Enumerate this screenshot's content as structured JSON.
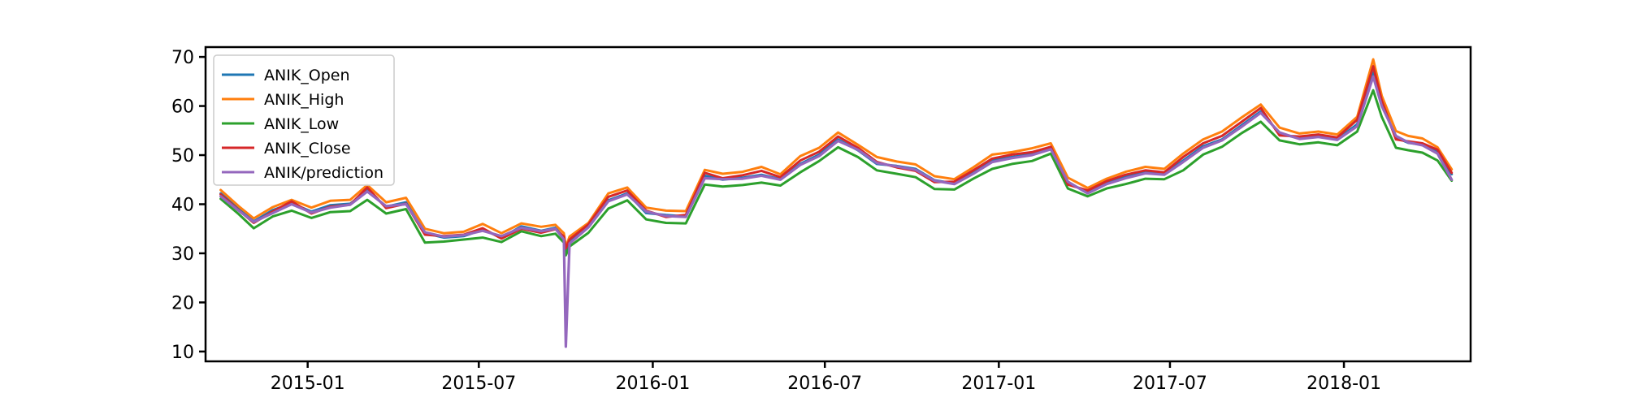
{
  "chart_data": {
    "type": "line",
    "title": "",
    "xlabel": "",
    "ylabel": "",
    "ylim": [
      8,
      72
    ],
    "xlim": [
      "2014-09-15",
      "2018-05-15"
    ],
    "grid": false,
    "legend_position": "top-left",
    "y_ticks": [
      10,
      20,
      30,
      40,
      50,
      60,
      70
    ],
    "x_ticks": [
      {
        "date": "2015-01-01",
        "label": "2015-01"
      },
      {
        "date": "2015-07-01",
        "label": "2015-07"
      },
      {
        "date": "2016-01-01",
        "label": "2016-01"
      },
      {
        "date": "2016-07-01",
        "label": "2016-07"
      },
      {
        "date": "2017-01-01",
        "label": "2017-01"
      },
      {
        "date": "2017-07-01",
        "label": "2017-07"
      },
      {
        "date": "2018-01-01",
        "label": "2018-01"
      }
    ],
    "dates": [
      "2014-10-01",
      "2014-10-20",
      "2014-11-05",
      "2014-11-25",
      "2014-12-15",
      "2015-01-05",
      "2015-01-25",
      "2015-02-15",
      "2015-03-05",
      "2015-03-25",
      "2015-04-15",
      "2015-05-05",
      "2015-05-25",
      "2015-06-15",
      "2015-07-05",
      "2015-07-25",
      "2015-08-15",
      "2015-09-05",
      "2015-09-20",
      "2015-09-29",
      "2015-10-01",
      "2015-10-05",
      "2015-10-25",
      "2015-11-15",
      "2015-12-05",
      "2015-12-25",
      "2016-01-15",
      "2016-02-05",
      "2016-02-25",
      "2016-03-15",
      "2016-04-05",
      "2016-04-25",
      "2016-05-15",
      "2016-06-05",
      "2016-06-25",
      "2016-07-15",
      "2016-08-05",
      "2016-08-25",
      "2016-09-15",
      "2016-10-05",
      "2016-10-25",
      "2016-11-15",
      "2016-12-05",
      "2016-12-25",
      "2017-01-15",
      "2017-02-05",
      "2017-02-25",
      "2017-03-15",
      "2017-04-05",
      "2017-04-25",
      "2017-05-15",
      "2017-06-05",
      "2017-06-25",
      "2017-07-15",
      "2017-08-05",
      "2017-08-25",
      "2017-09-15",
      "2017-10-05",
      "2017-10-25",
      "2017-11-15",
      "2017-12-05",
      "2017-12-25",
      "2018-01-15",
      "2018-02-01",
      "2018-02-10",
      "2018-02-25",
      "2018-03-10",
      "2018-03-25",
      "2018-04-10",
      "2018-04-25"
    ],
    "series": [
      {
        "name": "ANIK_Open",
        "color": "#1f77b4",
        "values": [
          42.2,
          39.1,
          36.5,
          38.8,
          40.2,
          38.5,
          39.8,
          40.1,
          42.8,
          39.5,
          40.4,
          34.1,
          33.2,
          33.5,
          34.8,
          33.2,
          35.5,
          34.6,
          35.2,
          33.1,
          30.5,
          32.5,
          35.5,
          40.8,
          42.2,
          38.2,
          37.8,
          37.5,
          45.8,
          45.0,
          45.4,
          46.0,
          45.1,
          48.2,
          50.1,
          53.2,
          51.0,
          48.2,
          47.8,
          47.2,
          44.9,
          44.2,
          46.4,
          48.9,
          49.6,
          50.2,
          51.4,
          44.3,
          42.5,
          44.3,
          45.6,
          46.6,
          46.2,
          48.9,
          51.8,
          53.2,
          56.1,
          58.9,
          54.4,
          53.4,
          53.9,
          53.2,
          56.3,
          66.8,
          60.3,
          53.6,
          52.5,
          52.1,
          50.6,
          46.1
        ]
      },
      {
        "name": "ANIK_High",
        "color": "#ff7f0e",
        "values": [
          42.9,
          39.6,
          37.1,
          39.4,
          40.9,
          39.3,
          40.7,
          40.9,
          43.9,
          40.4,
          41.3,
          35.0,
          34.1,
          34.4,
          36.0,
          34.1,
          36.1,
          35.4,
          35.8,
          34.1,
          31.3,
          33.4,
          36.2,
          42.2,
          43.4,
          39.3,
          38.7,
          38.6,
          47.0,
          46.2,
          46.6,
          47.6,
          46.1,
          49.8,
          51.5,
          54.6,
          52.1,
          49.6,
          48.7,
          48.1,
          45.7,
          45.1,
          47.5,
          50.1,
          50.6,
          51.4,
          52.4,
          45.4,
          43.3,
          45.2,
          46.6,
          47.6,
          47.2,
          50.3,
          53.2,
          54.8,
          57.7,
          60.3,
          55.6,
          54.4,
          54.8,
          54.2,
          57.8,
          69.5,
          62.1,
          54.9,
          53.9,
          53.4,
          51.6,
          47.1
        ]
      },
      {
        "name": "ANIK_Low",
        "color": "#2ca02c",
        "values": [
          41.1,
          38.0,
          35.1,
          37.5,
          38.7,
          37.2,
          38.4,
          38.6,
          40.9,
          38.1,
          39.0,
          32.2,
          32.4,
          32.8,
          33.2,
          32.3,
          34.5,
          33.5,
          34.0,
          32.2,
          29.6,
          31.4,
          34.2,
          39.1,
          40.8,
          36.9,
          36.2,
          36.1,
          44.0,
          43.6,
          43.9,
          44.4,
          43.8,
          46.5,
          48.8,
          51.6,
          49.6,
          46.9,
          46.2,
          45.5,
          43.1,
          43.0,
          45.2,
          47.2,
          48.2,
          48.8,
          50.3,
          43.2,
          41.6,
          43.2,
          44.1,
          45.2,
          45.1,
          46.9,
          50.1,
          51.7,
          54.5,
          56.8,
          53.0,
          52.2,
          52.6,
          52.0,
          54.8,
          63.2,
          57.8,
          51.5,
          51.0,
          50.5,
          48.9,
          44.8
        ]
      },
      {
        "name": "ANIK_Close",
        "color": "#d62728",
        "values": [
          42.0,
          38.8,
          36.2,
          38.5,
          40.6,
          38.1,
          39.5,
          39.9,
          43.4,
          39.2,
          40.1,
          33.8,
          33.5,
          33.8,
          35.1,
          33.0,
          35.0,
          34.2,
          34.9,
          33.4,
          31.0,
          32.8,
          35.9,
          41.5,
          42.8,
          38.7,
          37.4,
          37.8,
          46.4,
          45.3,
          45.9,
          46.8,
          45.5,
          48.9,
          50.7,
          53.8,
          51.5,
          48.6,
          47.5,
          46.8,
          44.5,
          44.6,
          46.9,
          49.3,
          50.1,
          50.6,
          51.7,
          44.0,
          42.8,
          44.7,
          46.0,
          46.9,
          46.5,
          49.6,
          52.4,
          53.9,
          56.8,
          59.6,
          54.0,
          53.8,
          54.2,
          53.6,
          57.2,
          68.1,
          61.1,
          53.2,
          52.8,
          52.4,
          51.1,
          46.4
        ]
      },
      {
        "name": "ANIK/prediction",
        "color": "#9467bd",
        "values": [
          41.6,
          38.7,
          36.4,
          38.2,
          40.0,
          38.3,
          39.3,
          39.9,
          42.6,
          39.6,
          40.0,
          34.3,
          33.4,
          33.7,
          34.6,
          33.5,
          35.2,
          34.5,
          35.0,
          32.8,
          11.0,
          32.0,
          35.3,
          40.6,
          42.0,
          38.5,
          37.6,
          37.4,
          45.3,
          45.1,
          45.2,
          45.8,
          45.0,
          48.0,
          49.8,
          52.9,
          51.1,
          48.4,
          47.7,
          47.0,
          44.8,
          44.1,
          46.2,
          48.6,
          49.4,
          50.0,
          51.2,
          44.6,
          42.2,
          44.1,
          45.3,
          46.3,
          46.0,
          48.6,
          51.5,
          53.0,
          55.8,
          58.6,
          54.6,
          53.3,
          53.7,
          53.1,
          55.9,
          66.0,
          60.0,
          53.9,
          52.6,
          52.0,
          50.3,
          45.0
        ]
      }
    ]
  }
}
